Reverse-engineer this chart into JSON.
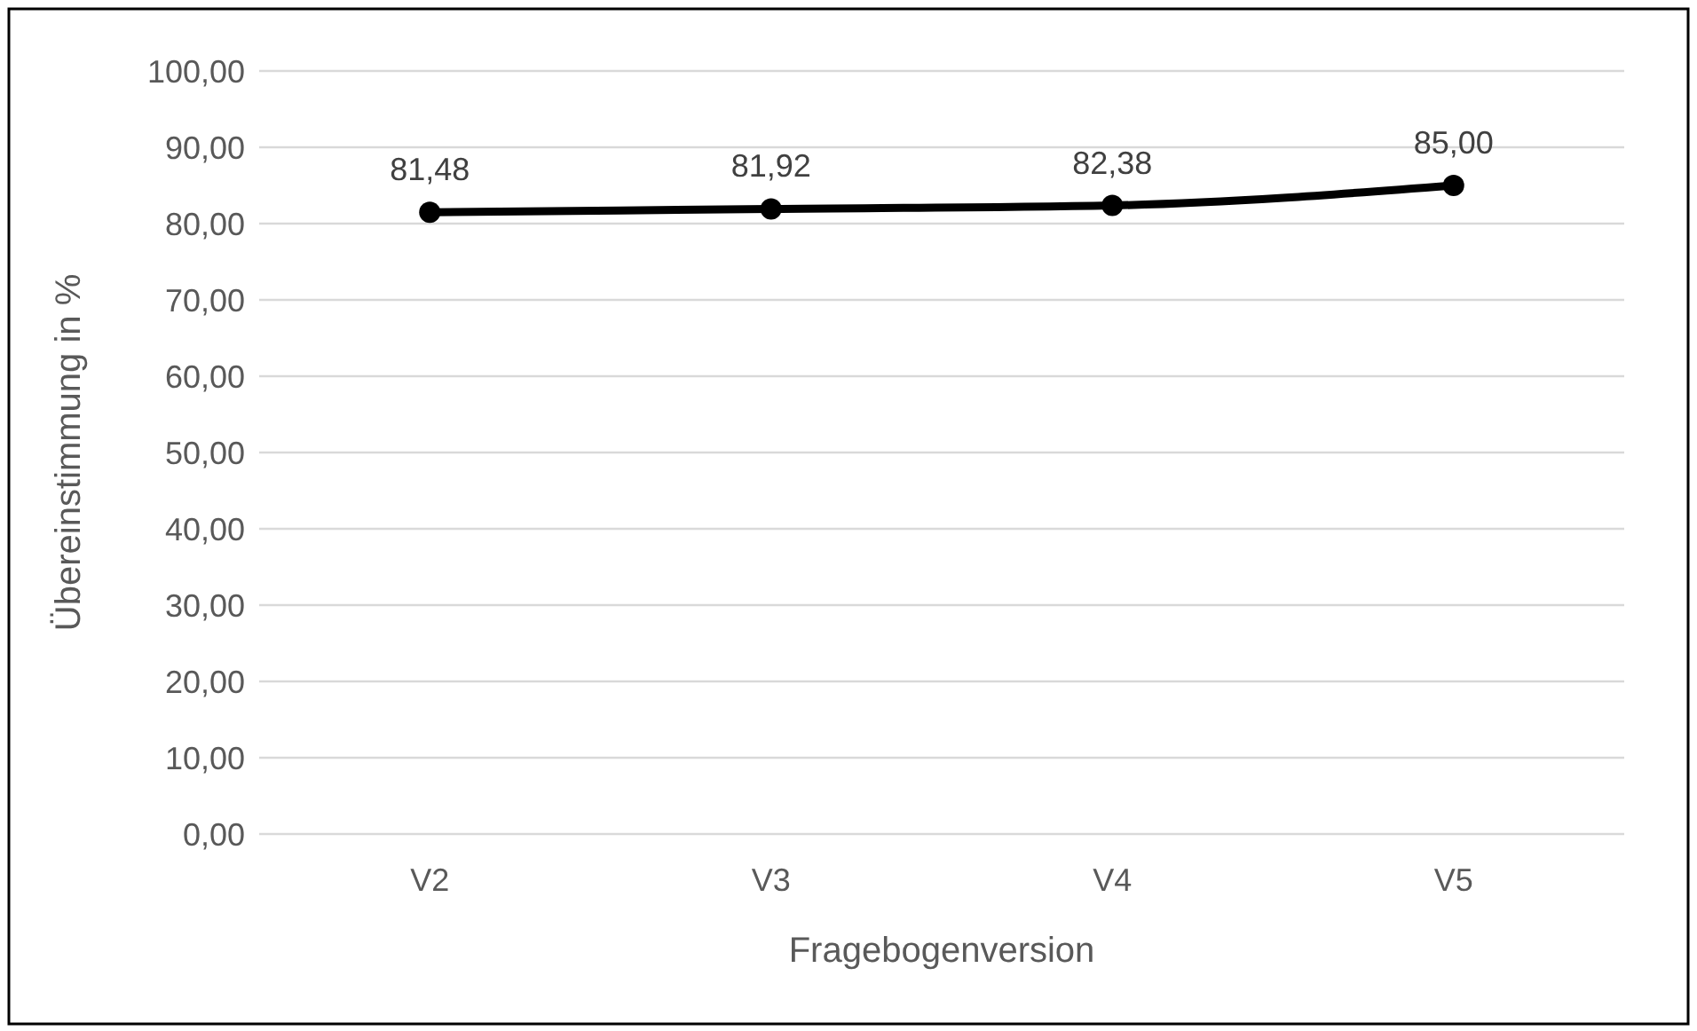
{
  "chart_data": {
    "type": "line",
    "xlabel": "Fragebogenversion",
    "ylabel": "Übereinstimmung in %",
    "categories": [
      "V2",
      "V3",
      "V4",
      "V5"
    ],
    "series": [
      {
        "color": "#000000",
        "values": [
          81.48,
          81.92,
          82.38,
          85.0
        ],
        "value_labels": [
          "81,48",
          "81,92",
          "82,38",
          "85,00"
        ]
      }
    ],
    "ylim": [
      0,
      100
    ],
    "yticks": [
      {
        "value": 0,
        "label": "0,00"
      },
      {
        "value": 10,
        "label": "10,00"
      },
      {
        "value": 20,
        "label": "20,00"
      },
      {
        "value": 30,
        "label": "30,00"
      },
      {
        "value": 40,
        "label": "40,00"
      },
      {
        "value": 50,
        "label": "50,00"
      },
      {
        "value": 60,
        "label": "60,00"
      },
      {
        "value": 70,
        "label": "70,00"
      },
      {
        "value": 80,
        "label": "80,00"
      },
      {
        "value": 90,
        "label": "90,00"
      },
      {
        "value": 100,
        "label": "100,00"
      }
    ],
    "grid": "y",
    "marker": "circle",
    "line_style": "solid"
  }
}
